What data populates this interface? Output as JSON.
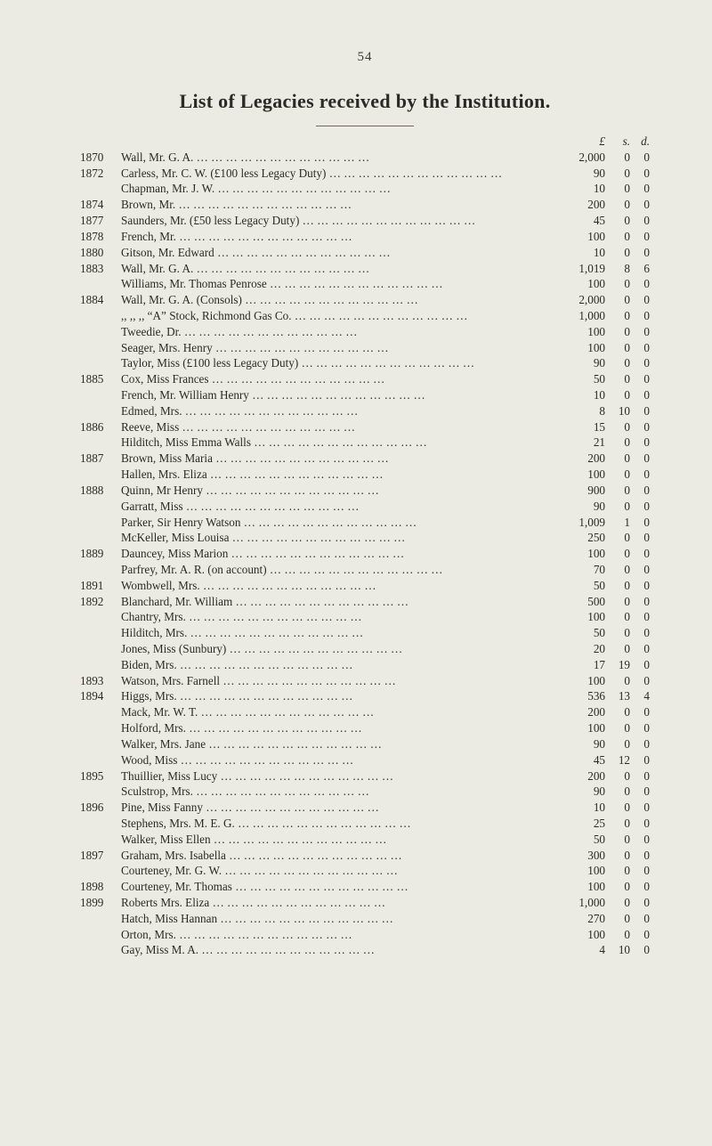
{
  "pageNumber": "54",
  "title": "List of Legacies received by the Institution.",
  "amountHeaders": {
    "l": "£",
    "s": "s.",
    "d": "d."
  },
  "leaderGlyph": "…     …     …     …     …     …     …     …     …     …     …     …",
  "entries": [
    {
      "year": "1870",
      "desc": "Wall, Mr. G. A.",
      "l": "2,000",
      "s": "0",
      "d": "0"
    },
    {
      "year": "1872",
      "desc": "Carless, Mr. C. W. (£100 less Legacy Duty)",
      "l": "90",
      "s": "0",
      "d": "0"
    },
    {
      "year": "",
      "desc": "Chapman, Mr. J. W.",
      "l": "10",
      "s": "0",
      "d": "0"
    },
    {
      "year": "1874",
      "desc": "Brown, Mr.",
      "l": "200",
      "s": "0",
      "d": "0"
    },
    {
      "year": "1877",
      "desc": "Saunders, Mr. (£50 less Legacy Duty)",
      "l": "45",
      "s": "0",
      "d": "0"
    },
    {
      "year": "1878",
      "desc": "French, Mr.",
      "l": "100",
      "s": "0",
      "d": "0"
    },
    {
      "year": "1880",
      "desc": "Gitson, Mr. Edward",
      "l": "10",
      "s": "0",
      "d": "0"
    },
    {
      "year": "1883",
      "desc": "Wall, Mr. G. A.",
      "l": "1,019",
      "s": "8",
      "d": "6"
    },
    {
      "year": "",
      "desc": "Williams, Mr. Thomas Penrose",
      "l": "100",
      "s": "0",
      "d": "0"
    },
    {
      "year": "1884",
      "desc": "Wall, Mr. G. A. (Consols)",
      "l": "2,000",
      "s": "0",
      "d": "0"
    },
    {
      "year": "",
      "desc": "  ,,      ,,      ,,      “A” Stock, Richmond Gas Co.",
      "l": "1,000",
      "s": "0",
      "d": "0"
    },
    {
      "year": "",
      "desc": "Tweedie, Dr.",
      "l": "100",
      "s": "0",
      "d": "0"
    },
    {
      "year": "",
      "desc": "Seager, Mrs. Henry",
      "l": "100",
      "s": "0",
      "d": "0"
    },
    {
      "year": "",
      "desc": "Taylor, Miss (£100 less Legacy Duty)",
      "l": "90",
      "s": "0",
      "d": "0"
    },
    {
      "year": "1885",
      "desc": "Cox, Miss Frances",
      "l": "50",
      "s": "0",
      "d": "0"
    },
    {
      "year": "",
      "desc": "French, Mr. William Henry",
      "l": "10",
      "s": "0",
      "d": "0"
    },
    {
      "year": "",
      "desc": "Edmed, Mrs.",
      "l": "8",
      "s": "10",
      "d": "0"
    },
    {
      "year": "1886",
      "desc": "Reeve, Miss",
      "l": "15",
      "s": "0",
      "d": "0"
    },
    {
      "year": "",
      "desc": "Hilditch, Miss Emma Walls",
      "l": "21",
      "s": "0",
      "d": "0"
    },
    {
      "year": "1887",
      "desc": "Brown, Miss Maria",
      "l": "200",
      "s": "0",
      "d": "0"
    },
    {
      "year": "",
      "desc": "Hallen, Mrs. Eliza",
      "l": "100",
      "s": "0",
      "d": "0"
    },
    {
      "year": "1888",
      "desc": "Quinn, Mr Henry",
      "l": "900",
      "s": "0",
      "d": "0"
    },
    {
      "year": "",
      "desc": "Garratt, Miss",
      "l": "90",
      "s": "0",
      "d": "0"
    },
    {
      "year": "",
      "desc": "Parker, Sir Henry Watson",
      "l": "1,009",
      "s": "1",
      "d": "0"
    },
    {
      "year": "",
      "desc": "McKeller, Miss Louisa",
      "l": "250",
      "s": "0",
      "d": "0"
    },
    {
      "year": "1889",
      "desc": "Dauncey, Miss Marion",
      "l": "100",
      "s": "0",
      "d": "0"
    },
    {
      "year": "",
      "desc": "Parfrey, Mr. A. R. (on account)",
      "l": "70",
      "s": "0",
      "d": "0"
    },
    {
      "year": "1891",
      "desc": "Wombwell, Mrs.",
      "l": "50",
      "s": "0",
      "d": "0"
    },
    {
      "year": "1892",
      "desc": "Blanchard, Mr. William",
      "l": "500",
      "s": "0",
      "d": "0"
    },
    {
      "year": "",
      "desc": "Chantry, Mrs.",
      "l": "100",
      "s": "0",
      "d": "0"
    },
    {
      "year": "",
      "desc": "Hilditch, Mrs.",
      "l": "50",
      "s": "0",
      "d": "0"
    },
    {
      "year": "",
      "desc": "Jones, Miss (Sunbury)",
      "l": "20",
      "s": "0",
      "d": "0"
    },
    {
      "year": "",
      "desc": "Biden, Mrs.",
      "l": "17",
      "s": "19",
      "d": "0"
    },
    {
      "year": "1893",
      "desc": "Watson, Mrs. Farnell",
      "l": "100",
      "s": "0",
      "d": "0"
    },
    {
      "year": "1894",
      "desc": "Higgs, Mrs.",
      "l": "536",
      "s": "13",
      "d": "4"
    },
    {
      "year": "",
      "desc": "Mack, Mr. W. T.",
      "l": "200",
      "s": "0",
      "d": "0"
    },
    {
      "year": "",
      "desc": "Holford, Mrs.",
      "l": "100",
      "s": "0",
      "d": "0"
    },
    {
      "year": "",
      "desc": "Walker, Mrs. Jane",
      "l": "90",
      "s": "0",
      "d": "0"
    },
    {
      "year": "",
      "desc": "Wood, Miss",
      "l": "45",
      "s": "12",
      "d": "0"
    },
    {
      "year": "1895",
      "desc": "Thuillier, Miss Lucy",
      "l": "200",
      "s": "0",
      "d": "0"
    },
    {
      "year": "",
      "desc": "Sculstrop, Mrs.",
      "l": "90",
      "s": "0",
      "d": "0"
    },
    {
      "year": "1896",
      "desc": "Pine, Miss Fanny",
      "l": "10",
      "s": "0",
      "d": "0"
    },
    {
      "year": "",
      "desc": "Stephens, Mrs. M. E. G.",
      "l": "25",
      "s": "0",
      "d": "0"
    },
    {
      "year": "",
      "desc": "Walker, Miss Ellen",
      "l": "50",
      "s": "0",
      "d": "0"
    },
    {
      "year": "1897",
      "desc": "Graham, Mrs. Isabella",
      "l": "300",
      "s": "0",
      "d": "0"
    },
    {
      "year": "",
      "desc": "Courteney, Mr. G. W.",
      "l": "100",
      "s": "0",
      "d": "0"
    },
    {
      "year": "1898",
      "desc": "Courteney, Mr. Thomas",
      "l": "100",
      "s": "0",
      "d": "0"
    },
    {
      "year": "1899",
      "desc": "Roberts Mrs. Eliza",
      "l": "1,000",
      "s": "0",
      "d": "0"
    },
    {
      "year": "",
      "desc": "Hatch, Miss Hannan",
      "l": "270",
      "s": "0",
      "d": "0"
    },
    {
      "year": "",
      "desc": "Orton, Mrs.",
      "l": "100",
      "s": "0",
      "d": "0"
    },
    {
      "year": "",
      "desc": "Gay, Miss M. A.",
      "l": "4",
      "s": "10",
      "d": "0"
    }
  ]
}
